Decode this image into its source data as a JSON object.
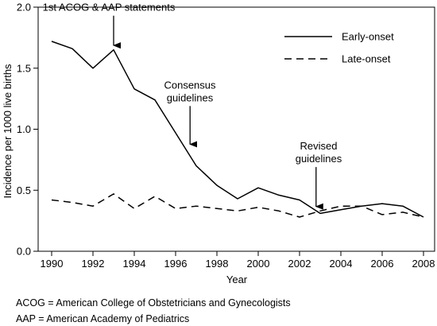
{
  "chart_data": {
    "type": "line",
    "xlabel": "Year",
    "ylabel": "Incidence per 1000 live births",
    "xlim": [
      1990,
      2008
    ],
    "ylim": [
      0.0,
      2.0
    ],
    "x_ticks": [
      "1990",
      "1992",
      "1994",
      "1996",
      "1998",
      "2000",
      "2002",
      "2004",
      "2006",
      "2008"
    ],
    "y_ticks": [
      "0.0",
      "0.5",
      "1.0",
      "1.5",
      "2.0"
    ],
    "grid": false,
    "legend_position": "top-right",
    "series": [
      {
        "name": "Early-onset",
        "style": "solid",
        "x": [
          1990,
          1991,
          1992,
          1993,
          1994,
          1995,
          1996,
          1997,
          1998,
          1999,
          2000,
          2001,
          2002,
          2003,
          2004,
          2005,
          2006,
          2007,
          2008
        ],
        "values": [
          1.72,
          1.66,
          1.5,
          1.65,
          1.33,
          1.24,
          0.97,
          0.7,
          0.54,
          0.43,
          0.52,
          0.46,
          0.42,
          0.31,
          0.34,
          0.37,
          0.39,
          0.37,
          0.28
        ]
      },
      {
        "name": "Late-onset",
        "style": "dashed",
        "x": [
          1990,
          1991,
          1992,
          1993,
          1994,
          1995,
          1996,
          1997,
          1998,
          1999,
          2000,
          2001,
          2002,
          2003,
          2004,
          2005,
          2006,
          2007,
          2008
        ],
        "values": [
          0.42,
          0.4,
          0.37,
          0.47,
          0.35,
          0.45,
          0.35,
          0.37,
          0.35,
          0.33,
          0.36,
          0.33,
          0.28,
          0.33,
          0.37,
          0.37,
          0.3,
          0.32,
          0.28
        ]
      }
    ],
    "annotations": [
      {
        "lines": [
          "1st ACOG & AAP statements"
        ],
        "arrow_x": 1993,
        "arrow_y": 1.68,
        "arrow_top_y": 1.93
      },
      {
        "lines": [
          "Consensus",
          "guidelines"
        ],
        "arrow_x": 1996.7,
        "arrow_y": 0.87,
        "arrow_top_y": 1.19
      },
      {
        "lines": [
          "Revised",
          "guidelines"
        ],
        "arrow_x": 2002.8,
        "arrow_y": 0.36,
        "arrow_top_y": 0.69
      }
    ]
  },
  "footnotes": [
    "ACOG = American College of Obstetricians and Gynecologists",
    "AAP = American Academy of Pediatrics"
  ]
}
